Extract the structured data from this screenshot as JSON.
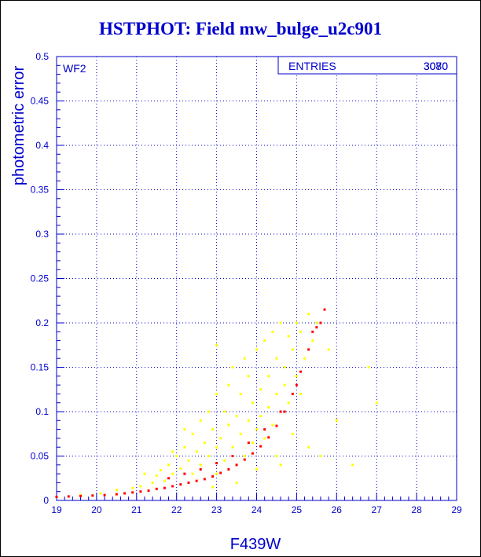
{
  "chart_data": {
    "type": "scatter",
    "title": "HSTPHOT: Field mw_bulge_u2c901",
    "panel_label": "WF2",
    "xlabel": "F439W",
    "ylabel": "photometric error",
    "xlim": [
      19,
      29
    ],
    "ylim": [
      0,
      0.5
    ],
    "x_ticks": [
      "19",
      "20",
      "21",
      "22",
      "23",
      "24",
      "25",
      "26",
      "27",
      "28",
      "29"
    ],
    "y_ticks": [
      "0",
      "0.05",
      "0.1",
      "0.15",
      "0.2",
      "0.25",
      "0.3",
      "0.35",
      "0.4",
      "0.45",
      "0.5"
    ],
    "grid": true,
    "stats_box": {
      "label": "ENTRIES",
      "value": "3080",
      "overprinted_value": "3070"
    },
    "series": [
      {
        "color": "#ffff00",
        "description": "scattered points around the sequence",
        "points": [
          [
            19.6,
            0.006
          ],
          [
            20.1,
            0.008
          ],
          [
            20.5,
            0.012
          ],
          [
            20.9,
            0.014
          ],
          [
            21.1,
            0.016
          ],
          [
            21.2,
            0.03
          ],
          [
            21.4,
            0.02
          ],
          [
            21.5,
            0.028
          ],
          [
            21.6,
            0.034
          ],
          [
            21.7,
            0.022
          ],
          [
            21.8,
            0.04
          ],
          [
            21.9,
            0.03
          ],
          [
            22.0,
            0.05
          ],
          [
            22.1,
            0.036
          ],
          [
            22.2,
            0.06
          ],
          [
            22.3,
            0.045
          ],
          [
            22.4,
            0.075
          ],
          [
            22.4,
            0.03
          ],
          [
            22.5,
            0.055
          ],
          [
            22.6,
            0.09
          ],
          [
            22.6,
            0.04
          ],
          [
            22.7,
            0.065
          ],
          [
            22.8,
            0.1
          ],
          [
            22.8,
            0.05
          ],
          [
            22.9,
            0.08
          ],
          [
            23.0,
            0.12
          ],
          [
            23.0,
            0.06
          ],
          [
            23.0,
            0.03
          ],
          [
            23.1,
            0.07
          ],
          [
            23.2,
            0.1
          ],
          [
            23.2,
            0.045
          ],
          [
            23.3,
            0.085
          ],
          [
            23.3,
            0.13
          ],
          [
            23.4,
            0.06
          ],
          [
            23.4,
            0.15
          ],
          [
            23.5,
            0.095
          ],
          [
            23.5,
            0.04
          ],
          [
            23.6,
            0.075
          ],
          [
            23.6,
            0.12
          ],
          [
            23.7,
            0.16
          ],
          [
            23.7,
            0.05
          ],
          [
            23.8,
            0.09
          ],
          [
            23.8,
            0.14
          ],
          [
            23.9,
            0.065
          ],
          [
            23.9,
            0.11
          ],
          [
            24.0,
            0.17
          ],
          [
            24.0,
            0.08
          ],
          [
            24.0,
            0.035
          ],
          [
            24.1,
            0.125
          ],
          [
            24.1,
            0.095
          ],
          [
            24.2,
            0.18
          ],
          [
            24.2,
            0.07
          ],
          [
            24.3,
            0.14
          ],
          [
            24.3,
            0.105
          ],
          [
            24.4,
            0.19
          ],
          [
            24.4,
            0.085
          ],
          [
            24.5,
            0.16
          ],
          [
            24.5,
            0.12
          ],
          [
            24.5,
            0.05
          ],
          [
            24.6,
            0.2
          ],
          [
            24.6,
            0.1
          ],
          [
            24.7,
            0.15
          ],
          [
            24.7,
            0.13
          ],
          [
            24.8,
            0.185
          ],
          [
            24.8,
            0.11
          ],
          [
            24.9,
            0.17
          ],
          [
            24.9,
            0.075
          ],
          [
            25.0,
            0.2
          ],
          [
            25.0,
            0.14
          ],
          [
            25.1,
            0.19
          ],
          [
            25.1,
            0.12
          ],
          [
            25.2,
            0.16
          ],
          [
            25.3,
            0.21
          ],
          [
            25.3,
            0.06
          ],
          [
            25.4,
            0.18
          ],
          [
            25.5,
            0.2
          ],
          [
            25.6,
            0.05
          ],
          [
            25.8,
            0.17
          ],
          [
            26.0,
            0.09
          ],
          [
            26.4,
            0.04
          ],
          [
            26.8,
            0.15
          ],
          [
            27.0,
            0.11
          ],
          [
            23.5,
            0.02
          ],
          [
            22.9,
            0.015
          ],
          [
            24.6,
            0.04
          ],
          [
            21.9,
            0.055
          ],
          [
            22.2,
            0.08
          ],
          [
            23.0,
            0.175
          ]
        ]
      },
      {
        "color": "#ff0000",
        "description": "main photometric error sequence",
        "points": [
          [
            19.0,
            0.004
          ],
          [
            19.3,
            0.0045
          ],
          [
            19.6,
            0.005
          ],
          [
            19.9,
            0.0055
          ],
          [
            20.2,
            0.006
          ],
          [
            20.5,
            0.007
          ],
          [
            20.7,
            0.008
          ],
          [
            20.9,
            0.009
          ],
          [
            21.1,
            0.01
          ],
          [
            21.3,
            0.011
          ],
          [
            21.5,
            0.013
          ],
          [
            21.7,
            0.014
          ],
          [
            21.9,
            0.016
          ],
          [
            22.1,
            0.018
          ],
          [
            22.3,
            0.02
          ],
          [
            22.5,
            0.022
          ],
          [
            22.7,
            0.024
          ],
          [
            22.9,
            0.027
          ],
          [
            23.1,
            0.031
          ],
          [
            23.3,
            0.035
          ],
          [
            23.5,
            0.04
          ],
          [
            23.7,
            0.046
          ],
          [
            23.9,
            0.053
          ],
          [
            24.1,
            0.061
          ],
          [
            24.3,
            0.071
          ],
          [
            24.5,
            0.084
          ],
          [
            24.7,
            0.1
          ],
          [
            24.9,
            0.12
          ],
          [
            25.1,
            0.145
          ],
          [
            25.3,
            0.17
          ],
          [
            25.5,
            0.195
          ],
          [
            25.7,
            0.215
          ],
          [
            21.8,
            0.025
          ],
          [
            22.2,
            0.03
          ],
          [
            22.6,
            0.035
          ],
          [
            23.0,
            0.042
          ],
          [
            23.4,
            0.05
          ],
          [
            23.8,
            0.065
          ],
          [
            24.2,
            0.08
          ],
          [
            24.6,
            0.1
          ],
          [
            25.0,
            0.13
          ],
          [
            25.4,
            0.19
          ],
          [
            25.6,
            0.2
          ]
        ]
      }
    ]
  }
}
